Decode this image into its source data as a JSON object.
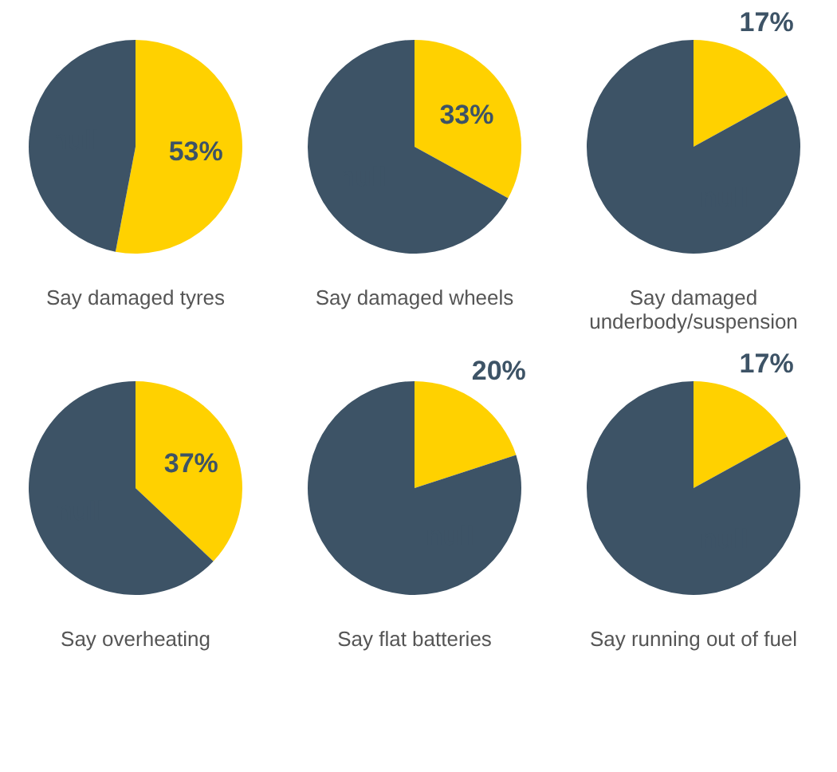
{
  "chart_data": [
    {
      "type": "pie",
      "title": "Say damaged tyres",
      "categories": [
        null,
        null
      ],
      "values": [
        53,
        47
      ],
      "colors": [
        "#ffd100",
        "#3d5366"
      ],
      "value_labels": [
        "53%",
        null
      ],
      "legend": false
    },
    {
      "type": "pie",
      "title": "Say damaged wheels",
      "categories": [
        null,
        null
      ],
      "values": [
        33,
        67
      ],
      "colors": [
        "#ffd100",
        "#3d5366"
      ],
      "value_labels": [
        "33%",
        null
      ],
      "legend": false
    },
    {
      "type": "pie",
      "title": "Say damaged underbody/suspension",
      "categories": [
        null,
        null
      ],
      "values": [
        17,
        83
      ],
      "colors": [
        "#ffd100",
        "#3d5366"
      ],
      "value_labels": [
        "17%",
        null
      ],
      "legend": false
    },
    {
      "type": "pie",
      "title": "Say overheating",
      "categories": [
        null,
        null
      ],
      "values": [
        37,
        63
      ],
      "colors": [
        "#ffd100",
        "#3d5366"
      ],
      "value_labels": [
        "37%",
        null
      ],
      "legend": false
    },
    {
      "type": "pie",
      "title": "Say flat batteries",
      "categories": [
        null,
        null
      ],
      "values": [
        20,
        80
      ],
      "colors": [
        "#ffd100",
        "#3d5366"
      ],
      "value_labels": [
        "20%",
        null
      ],
      "legend": false
    },
    {
      "type": "pie",
      "title": "Say running out of fuel",
      "categories": [
        null,
        null
      ],
      "values": [
        17,
        83
      ],
      "colors": [
        "#ffd100",
        "#3d5366"
      ],
      "value_labels": [
        "17%",
        null
      ],
      "legend": false
    }
  ]
}
